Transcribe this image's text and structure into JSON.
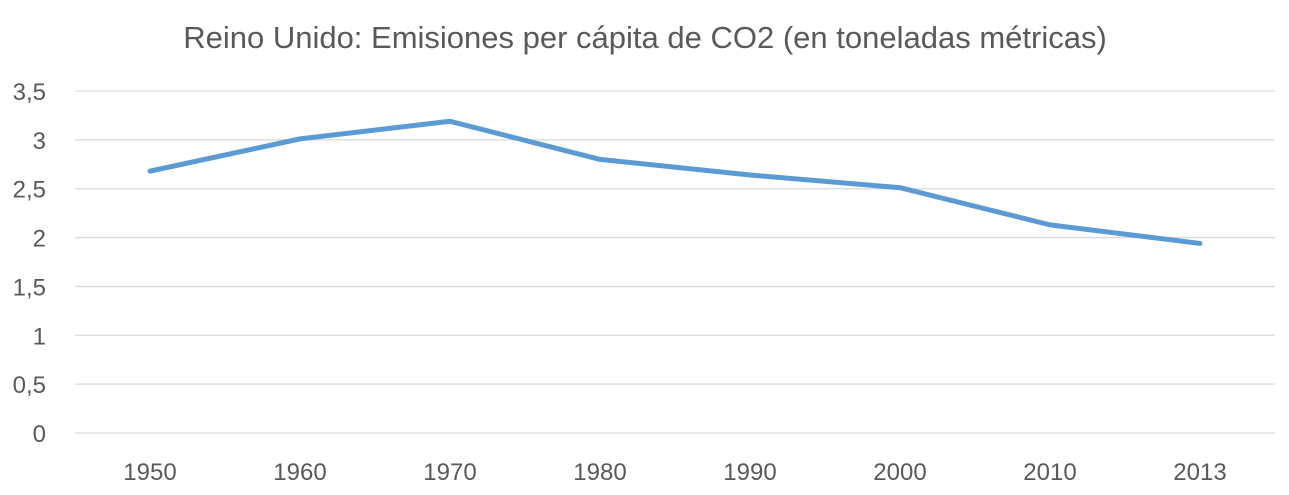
{
  "chart_data": {
    "type": "line",
    "title": "Reino Unido: Emisiones per cápita de CO2 (en toneladas métricas)",
    "xlabel": "",
    "ylabel": "",
    "categories": [
      "1950",
      "1960",
      "1970",
      "1980",
      "1990",
      "2000",
      "2010",
      "2013"
    ],
    "series": [
      {
        "values": [
          2.68,
          3.01,
          3.19,
          2.8,
          2.64,
          2.51,
          2.13,
          1.94
        ],
        "color": "#5B9BD5"
      }
    ],
    "ylim": [
      0,
      3.5
    ],
    "y_ticks": [
      "0",
      "0,5",
      "1",
      "1,5",
      "2",
      "2,5",
      "3",
      "3,5"
    ],
    "grid": true,
    "legend": "none"
  }
}
